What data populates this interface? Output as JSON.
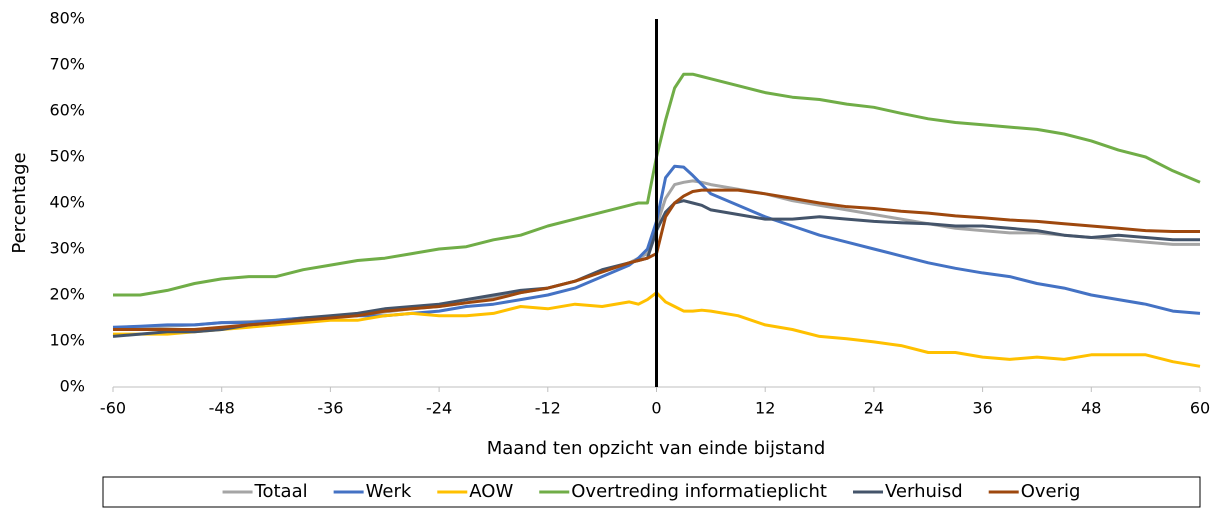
{
  "chart_data": {
    "type": "line",
    "y_label": "Percentage",
    "x_label": "Maand ten opzicht van einde bijstand",
    "x": [
      -60,
      -57,
      -54,
      -51,
      -48,
      -45,
      -42,
      -39,
      -36,
      -33,
      -30,
      -27,
      -24,
      -21,
      -18,
      -15,
      -12,
      -9,
      -6,
      -3,
      -2,
      -1,
      0,
      1,
      2,
      3,
      4,
      5,
      6,
      9,
      12,
      15,
      18,
      21,
      24,
      27,
      30,
      33,
      36,
      39,
      42,
      45,
      48,
      51,
      54,
      57,
      60
    ],
    "series": [
      {
        "name": "Totaal",
        "color": "#a5a5a5",
        "values": [
          12.5,
          13,
          13.2,
          13.5,
          14,
          14.2,
          14.5,
          15,
          15.3,
          15.8,
          16.3,
          17,
          17.5,
          18.3,
          19.5,
          20.5,
          21.5,
          23,
          25,
          27,
          28,
          29,
          35,
          41,
          44,
          44.5,
          44.8,
          44.5,
          44,
          43,
          42,
          40.5,
          39.5,
          38.5,
          37.5,
          36.5,
          35.5,
          34.5,
          34,
          33.5,
          33.5,
          33,
          32.5,
          32,
          31.5,
          31,
          31
        ]
      },
      {
        "name": "Werk",
        "color": "#4472c4",
        "values": [
          13,
          13.2,
          13.5,
          13.5,
          14,
          14,
          14.5,
          15,
          15.3,
          15.5,
          15.5,
          16,
          16.5,
          17.5,
          18,
          19,
          20,
          21.5,
          24,
          26.5,
          28,
          30,
          36,
          45.5,
          48,
          47.8,
          46,
          44,
          42,
          39.5,
          37,
          35,
          33,
          31.5,
          30,
          28.5,
          27,
          25.8,
          24.8,
          24,
          22.5,
          21.5,
          20,
          19,
          18,
          16.5,
          16
        ]
      },
      {
        "name": "AOW",
        "color": "#ffc000",
        "values": [
          11.5,
          11.5,
          11.5,
          12,
          12.5,
          13,
          13.5,
          14,
          14.5,
          14.5,
          15.5,
          16,
          15.5,
          15.5,
          16,
          17.5,
          17,
          18,
          17.5,
          18.5,
          18,
          19,
          20.5,
          18.5,
          17.5,
          16.5,
          16.5,
          16.7,
          16.5,
          15.5,
          13.5,
          12.5,
          11,
          10.5,
          9.8,
          9,
          7.5,
          7.5,
          6.5,
          6,
          6.5,
          6,
          7,
          7,
          7,
          5.5,
          4.5
        ]
      },
      {
        "name": "Overtreding informatieplicht",
        "color": "#70ad47",
        "values": [
          20,
          20,
          21,
          22.5,
          23.5,
          24,
          24,
          25.5,
          26.5,
          27.5,
          28,
          29,
          30,
          30.5,
          32,
          33,
          35,
          36.5,
          38,
          39.5,
          40,
          40,
          50,
          58,
          65,
          68,
          68,
          67.5,
          67,
          65.5,
          64,
          63,
          62.5,
          61.5,
          60.8,
          59.5,
          58.3,
          57.5,
          57,
          56.5,
          56,
          55,
          53.5,
          51.5,
          50,
          47,
          44.5
        ]
      },
      {
        "name": "Verhuisd",
        "color": "#44546a",
        "values": [
          11,
          11.5,
          12,
          12,
          12.5,
          13.5,
          14,
          15,
          15.5,
          16,
          17,
          17.5,
          18,
          19,
          20,
          21,
          21.5,
          23,
          25.5,
          27,
          27.5,
          28,
          34,
          38,
          40,
          40.5,
          40,
          39.5,
          38.5,
          37.5,
          36.5,
          36.5,
          37,
          36.5,
          36,
          35.7,
          35.5,
          35,
          35,
          34.5,
          34,
          33,
          32.5,
          33,
          32.5,
          32,
          32
        ]
      },
      {
        "name": "Overig",
        "color": "#9e480e",
        "values": [
          12.5,
          12.5,
          12.5,
          12.5,
          13,
          13.5,
          14,
          14.5,
          15,
          15.5,
          16.5,
          17,
          17.5,
          18.3,
          19,
          20.5,
          21.5,
          23,
          25,
          27,
          27.5,
          28,
          29,
          37,
          40,
          41.5,
          42.5,
          42.8,
          42.8,
          42.8,
          42,
          41,
          40,
          39.2,
          38.8,
          38.2,
          37.8,
          37.2,
          36.8,
          36.3,
          36,
          35.5,
          35,
          34.5,
          34,
          33.8,
          33.8
        ]
      }
    ],
    "xlim": [
      -60,
      60
    ],
    "xticks": [
      -60,
      -48,
      -36,
      -24,
      -12,
      0,
      12,
      24,
      36,
      48,
      60
    ],
    "ylim": [
      0,
      80
    ],
    "yticks": [
      {
        "value": 0,
        "label": "0%"
      },
      {
        "value": 10,
        "label": "10%"
      },
      {
        "value": 20,
        "label": "20%"
      },
      {
        "value": 30,
        "label": "30%"
      },
      {
        "value": 40,
        "label": "40%"
      },
      {
        "value": 50,
        "label": "50%"
      },
      {
        "value": 60,
        "label": "60%"
      },
      {
        "value": 70,
        "label": "70%"
      },
      {
        "value": 80,
        "label": "80%"
      }
    ],
    "reference_line_x": 0,
    "grid": false,
    "legend": "bottom"
  }
}
